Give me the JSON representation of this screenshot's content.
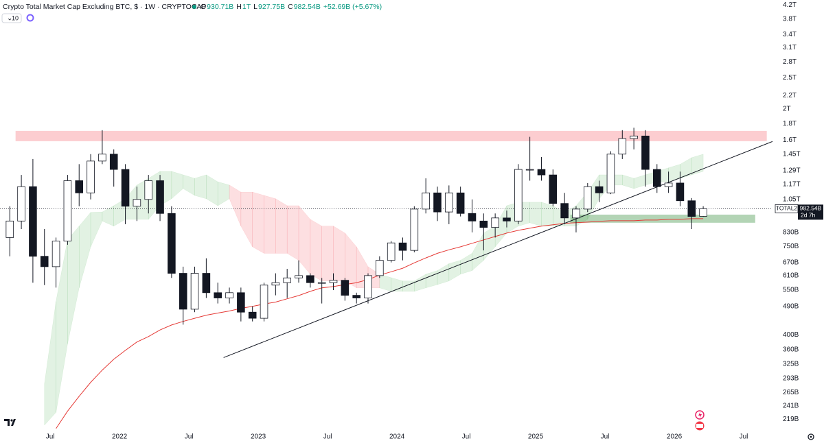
{
  "header": {
    "title": "Crypto Total Market Cap Excluding BTC, $ · 1W · CRYPTOCAP",
    "ohlc": [
      {
        "key": "O",
        "value": "930.71B"
      },
      {
        "key": "H",
        "value": "1T"
      },
      {
        "key": "L",
        "value": "927.75B"
      },
      {
        "key": "C",
        "value": "982.54B"
      }
    ],
    "change": "+52.69B (+5.67%)",
    "indicator_count": "10"
  },
  "chart_data": {
    "type": "candlestick",
    "x": [
      "2021-03",
      "2021-04",
      "2021-05",
      "2021-06",
      "2021-07",
      "2021-08",
      "2021-09",
      "2021-10",
      "2021-11",
      "2021-12",
      "2022-01",
      "2022-02",
      "2022-03",
      "2022-04",
      "2022-05",
      "2022-06",
      "2022-07",
      "2022-08",
      "2022-09",
      "2022-10",
      "2022-11",
      "2022-12",
      "2023-01",
      "2023-02",
      "2023-03",
      "2023-04",
      "2023-05",
      "2023-06",
      "2023-07",
      "2023-08",
      "2023-09",
      "2023-10",
      "2023-11",
      "2023-12",
      "2024-01",
      "2024-02",
      "2024-03",
      "2024-04",
      "2024-05",
      "2024-06",
      "2024-07",
      "2024-08",
      "2024-09",
      "2024-10",
      "2024-11",
      "2024-12",
      "2025-01",
      "2025-02",
      "2025-03",
      "2025-04",
      "2025-05",
      "2025-06",
      "2025-07",
      "2025-08",
      "2025-09",
      "2025-10",
      "2025-11",
      "2025-12",
      "2026-01",
      "2026-02",
      "2026-03"
    ],
    "open": [
      800,
      900,
      1150,
      700,
      650,
      780,
      1200,
      1100,
      1380,
      1450,
      1300,
      1000,
      1050,
      1200,
      950,
      620,
      480,
      620,
      540,
      520,
      540,
      470,
      450,
      570,
      580,
      600,
      610,
      580,
      580,
      590,
      530,
      520,
      610,
      680,
      770,
      730,
      980,
      1100,
      960,
      1100,
      950,
      900,
      860,
      920,
      900,
      1300,
      1300,
      1250,
      1020,
      920,
      980,
      1150,
      1100,
      1450,
      1620,
      1650,
      1300,
      1150,
      1180,
      1040,
      930.71
    ],
    "high": [
      1000,
      1250,
      1400,
      850,
      800,
      1250,
      1350,
      1450,
      1720,
      1500,
      1350,
      1150,
      1250,
      1250,
      1000,
      650,
      650,
      690,
      580,
      560,
      560,
      490,
      580,
      620,
      640,
      680,
      620,
      600,
      620,
      600,
      540,
      620,
      700,
      780,
      800,
      1000,
      1220,
      1150,
      1160,
      1150,
      1050,
      950,
      950,
      970,
      1350,
      1640,
      1420,
      1300,
      1100,
      1000,
      1180,
      1200,
      1480,
      1720,
      1750,
      1720,
      1350,
      1280,
      1280,
      1060,
      1000
    ],
    "low": [
      700,
      850,
      580,
      570,
      560,
      760,
      1000,
      1050,
      1350,
      1150,
      880,
      900,
      950,
      900,
      600,
      430,
      470,
      520,
      500,
      500,
      440,
      440,
      440,
      530,
      520,
      580,
      560,
      500,
      550,
      510,
      500,
      500,
      600,
      670,
      680,
      720,
      950,
      900,
      880,
      930,
      830,
      730,
      800,
      860,
      880,
      1200,
      1200,
      1000,
      880,
      830,
      960,
      1030,
      1090,
      1400,
      1500,
      1150,
      1100,
      1100,
      1000,
      850,
      927.75
    ],
    "close": [
      900,
      1150,
      700,
      650,
      780,
      1200,
      1100,
      1380,
      1450,
      1300,
      1000,
      1050,
      1200,
      950,
      620,
      480,
      620,
      540,
      520,
      540,
      470,
      450,
      570,
      580,
      600,
      610,
      580,
      580,
      590,
      530,
      520,
      610,
      680,
      770,
      730,
      980,
      1100,
      960,
      1100,
      950,
      900,
      860,
      920,
      900,
      1300,
      1300,
      1250,
      1020,
      920,
      980,
      1150,
      1100,
      1450,
      1620,
      1650,
      1300,
      1150,
      1180,
      1040,
      930,
      982.54
    ],
    "up_color": "#ffffff",
    "down_color": "#131722",
    "border_color": "#131722",
    "ma": [
      null,
      null,
      null,
      null,
      205,
      232,
      258,
      285,
      311,
      336,
      358,
      380,
      395,
      414,
      429,
      440,
      450,
      460,
      467,
      474,
      483,
      490,
      498,
      505,
      517,
      529,
      545,
      559,
      564,
      572,
      580,
      593,
      612,
      627,
      643,
      668,
      692,
      715,
      733,
      749,
      768,
      787,
      806,
      826,
      842,
      855,
      868,
      876,
      885,
      889,
      893,
      898,
      902,
      902,
      902,
      906,
      906,
      911,
      911,
      915,
      915
    ],
    "ma_color": "#e53935",
    "cloud_upper": [
      null,
      null,
      null,
      282,
      507,
      787,
      868,
      957,
      960,
      1004,
      1055,
      1163,
      1220,
      1282,
      1282,
      1251,
      1220,
      1251,
      1190,
      1163,
      1106,
      1106,
      1080,
      1055,
      1004,
      1004,
      911,
      868,
      868,
      826,
      749,
      650,
      616,
      601,
      587,
      587,
      616,
      632,
      664,
      680,
      715,
      826,
      868,
      1004,
      1029,
      1029,
      1029,
      1004,
      955,
      1004,
      1106,
      1251,
      1251,
      1251,
      1220,
      1251,
      1282,
      1315,
      1348,
      1414,
      1449
    ],
    "cloud_lower": [
      null,
      null,
      null,
      210,
      230,
      375,
      559,
      749,
      900,
      868,
      911,
      911,
      911,
      1004,
      1055,
      1134,
      1080,
      1055,
      1004,
      1055,
      868,
      749,
      715,
      715,
      715,
      680,
      616,
      587,
      587,
      587,
      559,
      559,
      559,
      545,
      545,
      545,
      559,
      572,
      587,
      616,
      632,
      680,
      749,
      826,
      868,
      889,
      868,
      868,
      868,
      868,
      911,
      1055,
      1163,
      1163,
      1134,
      1163,
      1190,
      1190,
      1220,
      1251,
      1282
    ],
    "cloud_bullish": [
      null,
      null,
      null,
      true,
      true,
      true,
      true,
      true,
      true,
      true,
      true,
      true,
      true,
      true,
      true,
      true,
      true,
      true,
      true,
      false,
      false,
      false,
      false,
      false,
      false,
      false,
      false,
      false,
      false,
      false,
      false,
      false,
      true,
      true,
      true,
      true,
      true,
      true,
      true,
      true,
      true,
      true,
      true,
      true,
      true,
      true,
      true,
      true,
      true,
      true,
      true,
      true,
      true,
      true,
      true,
      true,
      true,
      true,
      true,
      true,
      true
    ],
    "cloud_colors": {
      "bullish": "rgba(76,175,80,0.16)",
      "bearish": "rgba(242,54,69,0.16)"
    },
    "zones": [
      {
        "x": [
          "2021-04",
          "2026-09"
        ],
        "y": [
          1590,
          1711
        ],
        "color": "rgba(242,54,69,0.25)"
      },
      {
        "x": [
          "2025-04",
          "2026-08"
        ],
        "y": [
          889,
          942
        ],
        "color": "rgba(56,142,60,0.38)"
      }
    ],
    "trendline": [
      {
        "x": "2022-10",
        "value": 340
      },
      {
        "x": "2026-10",
        "value": 1613
      }
    ],
    "trendline_color": "#131722",
    "last_price": {
      "value": 982.54,
      "label": "982.54B"
    },
    "symbol": "TOTAL2",
    "countdown": "2d 7h",
    "log_scale": true,
    "grid": false,
    "xlim": [
      "2021-02",
      "2026-10"
    ],
    "xticks": [
      {
        "value": "2021-07",
        "label": "Jul"
      },
      {
        "value": "2022-01",
        "label": "2022"
      },
      {
        "value": "2022-07",
        "label": "Jul"
      },
      {
        "value": "2023-01",
        "label": "2023"
      },
      {
        "value": "2023-07",
        "label": "Jul"
      },
      {
        "value": "2024-01",
        "label": "2024"
      },
      {
        "value": "2024-07",
        "label": "Jul"
      },
      {
        "value": "2025-01",
        "label": "2025"
      },
      {
        "value": "2025-07",
        "label": "Jul"
      },
      {
        "value": "2026-01",
        "label": "2026"
      },
      {
        "value": "2026-07",
        "label": "Jul"
      }
    ],
    "ylim": [
      200,
      4350
    ],
    "yticks": [
      {
        "value": 4200,
        "label": "4.2T"
      },
      {
        "value": 3800,
        "label": "3.8T"
      },
      {
        "value": 3400,
        "label": "3.4T"
      },
      {
        "value": 3100,
        "label": "3.1T"
      },
      {
        "value": 2800,
        "label": "2.8T"
      },
      {
        "value": 2500,
        "label": "2.5T"
      },
      {
        "value": 2200,
        "label": "2.2T"
      },
      {
        "value": 2000,
        "label": "2T"
      },
      {
        "value": 1800,
        "label": "1.8T"
      },
      {
        "value": 1600,
        "label": "1.6T"
      },
      {
        "value": 1450,
        "label": "1.45T"
      },
      {
        "value": 1290,
        "label": "1.29T"
      },
      {
        "value": 1170,
        "label": "1.17T"
      },
      {
        "value": 1050,
        "label": "1.05T"
      },
      {
        "value": 830,
        "label": "830B"
      },
      {
        "value": 750,
        "label": "750B"
      },
      {
        "value": 670,
        "label": "670B"
      },
      {
        "value": 610,
        "label": "610B"
      },
      {
        "value": 550,
        "label": "550B"
      },
      {
        "value": 490,
        "label": "490B"
      },
      {
        "value": 400,
        "label": "400B"
      },
      {
        "value": 360,
        "label": "360B"
      },
      {
        "value": 325,
        "label": "325B"
      },
      {
        "value": 293,
        "label": "293B"
      },
      {
        "value": 265,
        "label": "265B"
      },
      {
        "value": 241,
        "label": "241B"
      },
      {
        "value": 219,
        "label": "219B"
      }
    ]
  }
}
